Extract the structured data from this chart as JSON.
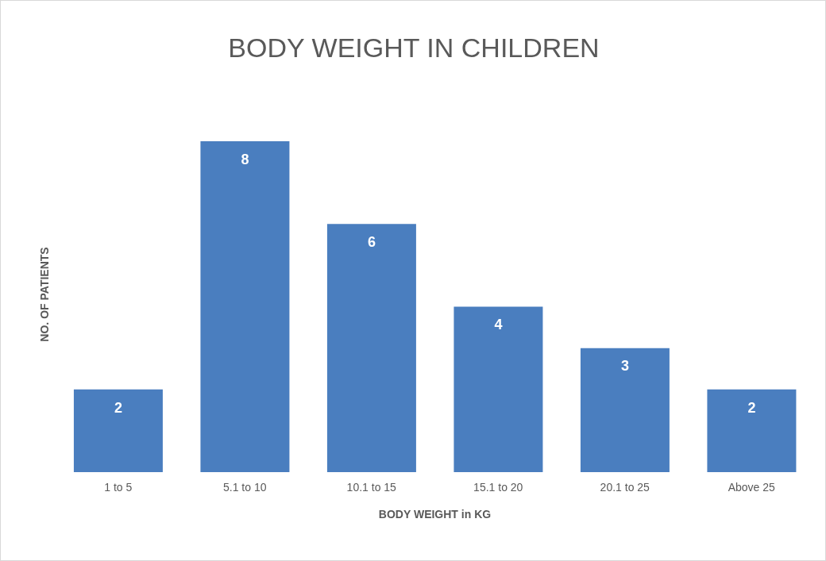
{
  "chart_data": {
    "type": "bar",
    "title": "BODY WEIGHT IN CHILDREN",
    "xlabel": "BODY WEIGHT in KG",
    "ylabel": "NO. OF PATIENTS",
    "categories": [
      "1 to 5",
      "5.1 to 10",
      "10.1 to 15",
      "15.1 to 20",
      "20.1 to 25",
      "Above 25"
    ],
    "values": [
      2,
      8,
      6,
      4,
      3,
      2
    ],
    "color": "#4a7ebf",
    "data_labels": true
  }
}
